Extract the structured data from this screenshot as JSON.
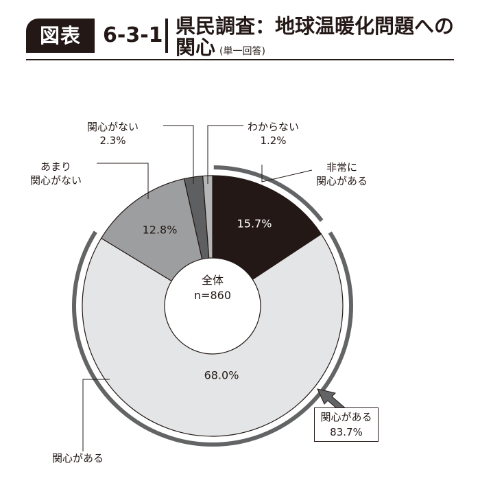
{
  "header": {
    "badge": "図表",
    "number": "6-3-1",
    "title_line1": "県民調査：地球温暖化問題への",
    "title_line2": "関心",
    "title_note": "(単一回答)"
  },
  "chart_data": {
    "type": "pie",
    "title": "県民調査：地球温暖化問題への関心",
    "center_label": [
      "全体",
      "n=860"
    ],
    "slices": [
      {
        "label": "非常に関心がある",
        "label_lines": [
          "非常に",
          "関心がある"
        ],
        "value": 15.7,
        "value_label": "15.7%",
        "color": "#231815"
      },
      {
        "label": "関心がある",
        "label_lines": [
          "関心がある"
        ],
        "value": 68.0,
        "value_label": "68.0%",
        "color": "#e4e5e6"
      },
      {
        "label": "あまり関心がない",
        "label_lines": [
          "あまり",
          "関心がない"
        ],
        "value": 12.8,
        "value_label": "12.8%",
        "color": "#9d9e9f"
      },
      {
        "label": "関心がない",
        "label_lines": [
          "関心がない",
          "2.3%"
        ],
        "value": 2.3,
        "value_label": "2.3%",
        "color": "#5e5f60"
      },
      {
        "label": "わからない",
        "label_lines": [
          "わからない",
          "1.2%"
        ],
        "value": 1.2,
        "value_label": "1.2%",
        "color": "#b5b6b7"
      }
    ],
    "group_total": {
      "label": "関心がある",
      "value": 83.7,
      "value_label": "83.7%"
    }
  }
}
